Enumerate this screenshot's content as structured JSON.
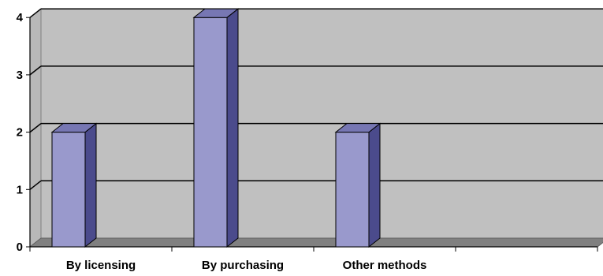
{
  "chart_data": {
    "type": "bar",
    "categories": [
      "By licensing",
      "By purchasing",
      "Other methods",
      ""
    ],
    "values": [
      2,
      4,
      2,
      null
    ],
    "yticks": [
      "0",
      "1",
      "2",
      "3",
      "4"
    ],
    "ylim": [
      0,
      4
    ],
    "grid": true,
    "legend": "none"
  },
  "colors": {
    "bar_front": "#9999cc",
    "bar_side": "#4b4b8c",
    "bar_top": "#7777b3",
    "wall": "#c0c0c0",
    "floor": "#808080",
    "grid_line": "#000000"
  }
}
